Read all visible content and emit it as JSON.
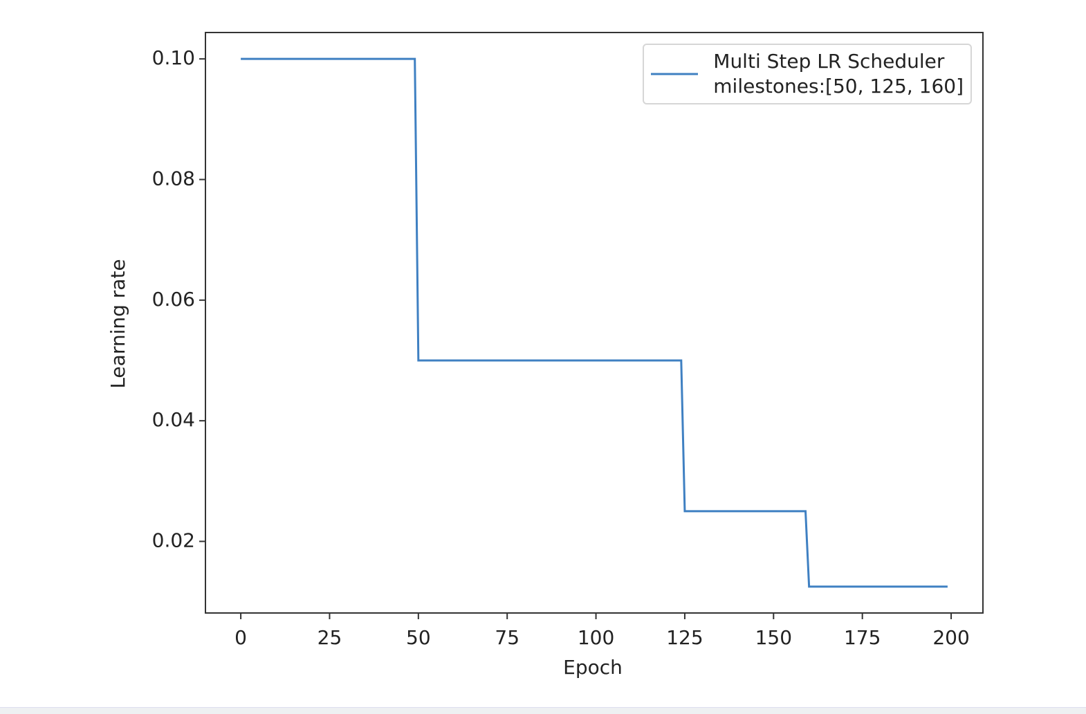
{
  "chart_data": {
    "type": "line",
    "x_label": "Epoch",
    "y_label": "Learning rate",
    "x": [
      0,
      49,
      50,
      124,
      125,
      159,
      160,
      199
    ],
    "series": [
      {
        "name": "Multi Step LR Scheduler\nmilestones:[50, 125, 160]",
        "color": "#3f80c2",
        "values": [
          0.1,
          0.1,
          0.05,
          0.05,
          0.025,
          0.025,
          0.0125,
          0.0125
        ]
      }
    ],
    "xlim": [
      -9.95,
      208.95
    ],
    "ylim": [
      0.008125,
      0.104375
    ],
    "xticks": [
      0,
      25,
      50,
      75,
      100,
      125,
      150,
      175,
      200
    ],
    "yticks": [
      {
        "value": 0.02,
        "label": "0.02"
      },
      {
        "value": 0.04,
        "label": "0.04"
      },
      {
        "value": 0.06,
        "label": "0.06"
      },
      {
        "value": 0.08,
        "label": "0.08"
      },
      {
        "value": 0.1,
        "label": "0.10"
      }
    ],
    "grid": false,
    "legend": "upper right"
  }
}
